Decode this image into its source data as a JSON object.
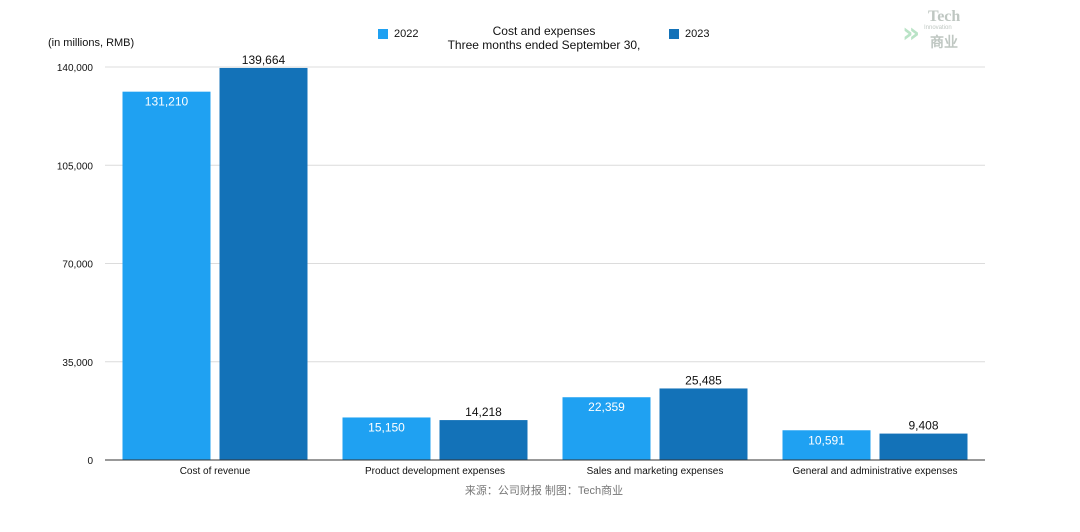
{
  "chart_data": {
    "type": "bar",
    "title": "Cost and expenses",
    "subtitle": "Three months ended September 30,",
    "ylabel": "(in millions, RMB)",
    "xlabel": "",
    "ylim": [
      0,
      140000
    ],
    "yticks": [
      0,
      35000,
      70000,
      105000,
      140000
    ],
    "ytick_labels": [
      "0",
      "35,000",
      "70,000",
      "105,000",
      "140,000"
    ],
    "categories": [
      "Cost of revenue",
      "Product development expenses",
      "Sales and marketing expenses",
      "General and administrative expenses"
    ],
    "series": [
      {
        "name": "2022",
        "color": "#1fa1f2",
        "values": [
          131210,
          15150,
          22359,
          10591
        ],
        "labels": [
          "131,210",
          "15,150",
          "22,359",
          "10,591"
        ],
        "label_position": "inside"
      },
      {
        "name": "2023",
        "color": "#1372b8",
        "values": [
          139664,
          14218,
          25485,
          9408
        ],
        "labels": [
          "139,664",
          "14,218",
          "25,485",
          "9,408"
        ],
        "label_position": "above"
      }
    ],
    "grid": true,
    "legend": "top"
  },
  "source": "来源：公司财报 制图：Tech商业",
  "logo": {
    "line1": "Tech",
    "line2": "Innovation",
    "line3": "商业"
  }
}
